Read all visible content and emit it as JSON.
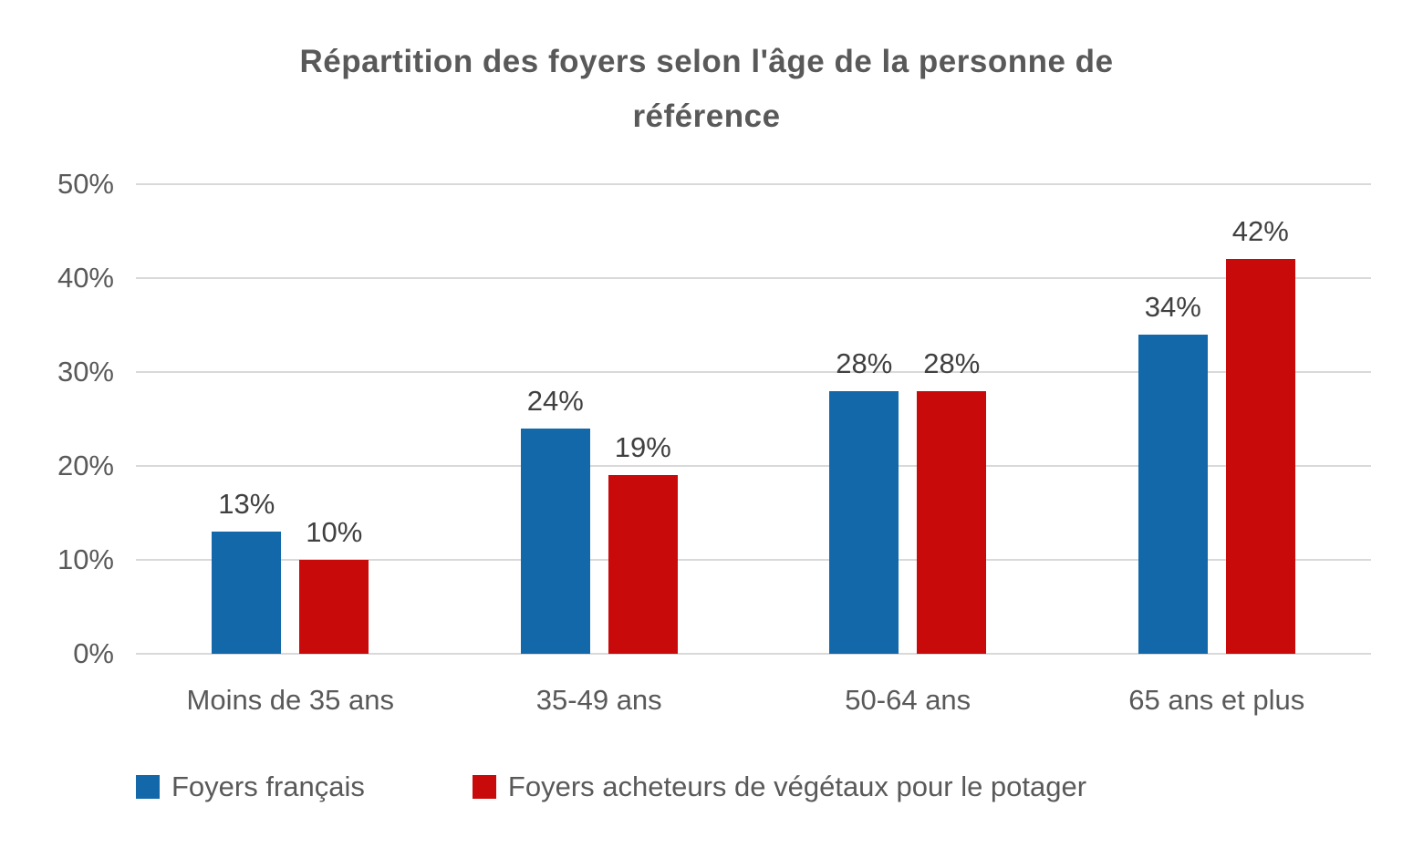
{
  "chart_data": {
    "type": "bar",
    "title": "Répartition des foyers selon l'âge de la personne de référence",
    "categories": [
      "Moins de 35 ans",
      "35-49 ans",
      "50-64 ans",
      "65 ans et plus"
    ],
    "series": [
      {
        "name": "Foyers français",
        "color": "#1268A8",
        "values": [
          13,
          24,
          28,
          34
        ]
      },
      {
        "name": "Foyers acheteurs de végétaux pour le potager",
        "color": "#C80A0A",
        "values": [
          10,
          19,
          28,
          42
        ]
      }
    ],
    "data_labels": [
      [
        "13%",
        "24%",
        "28%",
        "34%"
      ],
      [
        "10%",
        "19%",
        "28%",
        "42%"
      ]
    ],
    "value_suffix": "%",
    "xlabel": "",
    "ylabel": "",
    "ylim": [
      0,
      50
    ],
    "yticks": [
      "0%",
      "10%",
      "20%",
      "30%",
      "40%",
      "50%"
    ],
    "grid": true,
    "legend_position": "bottom"
  },
  "display": {
    "title_line1": "Répartition des foyers selon l'âge de la personne de",
    "title_line2": "référence"
  },
  "colors": {
    "grid": "#d9d9d9",
    "axis_text": "#595959",
    "data_label_text": "#404040",
    "title_text": "#595959",
    "background": "#ffffff"
  }
}
